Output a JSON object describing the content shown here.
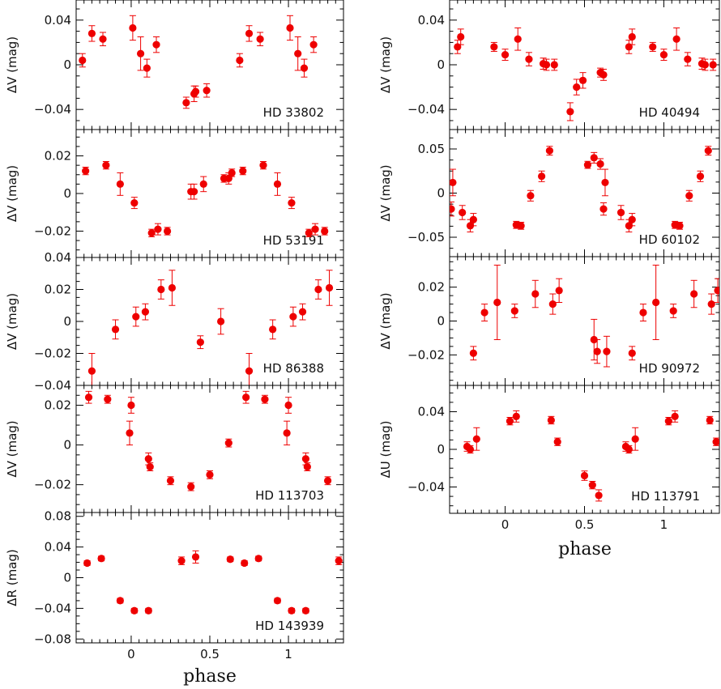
{
  "figure": {
    "xlabel": "phase",
    "x_ticks": [
      0,
      0.5,
      1
    ],
    "x_tick_labels": [
      "0",
      "0.5",
      "1"
    ],
    "xlim": [
      -0.35,
      1.35
    ]
  },
  "chart_data": [
    {
      "type": "scatter",
      "star": "HD 33802",
      "ylabel": "ΔV (mag)",
      "ylim": [
        -0.058,
        0.058
      ],
      "y_ticks": [
        0.04,
        0,
        -0.04
      ],
      "y_tick_labels": [
        "0.04",
        "0",
        "−0.04"
      ],
      "marker_color": "#ee0000",
      "points": [
        [
          -0.31,
          0.004,
          0.006
        ],
        [
          -0.25,
          0.028,
          0.007
        ],
        [
          -0.18,
          0.023,
          0.006
        ],
        [
          0.01,
          0.033,
          0.011
        ],
        [
          0.06,
          0.01,
          0.015
        ],
        [
          0.1,
          -0.003,
          0.008
        ],
        [
          0.16,
          0.018,
          0.007
        ],
        [
          0.35,
          -0.034,
          0.005
        ],
        [
          0.4,
          -0.026,
          0.007
        ],
        [
          0.41,
          -0.024,
          0.005
        ],
        [
          0.48,
          -0.023,
          0.006
        ],
        [
          0.69,
          0.004,
          0.006
        ],
        [
          0.75,
          0.028,
          0.007
        ],
        [
          0.82,
          0.023,
          0.006
        ],
        [
          1.01,
          0.033,
          0.011
        ],
        [
          1.06,
          0.01,
          0.015
        ],
        [
          1.1,
          -0.003,
          0.008
        ],
        [
          1.16,
          0.018,
          0.007
        ]
      ]
    },
    {
      "type": "scatter",
      "star": "HD 40494",
      "ylabel": "ΔV (mag)",
      "ylim": [
        -0.058,
        0.058
      ],
      "y_ticks": [
        0.04,
        0,
        -0.04
      ],
      "y_tick_labels": [
        "0.04",
        "0",
        "−0.04"
      ],
      "marker_color": "#ee0000",
      "points": [
        [
          -0.3,
          0.016,
          0.006
        ],
        [
          -0.28,
          0.025,
          0.007
        ],
        [
          -0.07,
          0.016,
          0.004
        ],
        [
          0.0,
          0.009,
          0.005
        ],
        [
          0.08,
          0.023,
          0.01
        ],
        [
          0.15,
          0.005,
          0.006
        ],
        [
          0.24,
          0.001,
          0.005
        ],
        [
          0.26,
          0.0,
          0.005
        ],
        [
          0.31,
          0.0,
          0.005
        ],
        [
          0.41,
          -0.042,
          0.008
        ],
        [
          0.45,
          -0.02,
          0.007
        ],
        [
          0.49,
          -0.014,
          0.007
        ],
        [
          0.6,
          -0.007,
          0.004
        ],
        [
          0.62,
          -0.009,
          0.005
        ],
        [
          0.78,
          0.016,
          0.006
        ],
        [
          0.8,
          0.025,
          0.007
        ],
        [
          0.93,
          0.016,
          0.004
        ],
        [
          1.0,
          0.009,
          0.005
        ],
        [
          1.08,
          0.023,
          0.01
        ],
        [
          1.15,
          0.005,
          0.006
        ],
        [
          1.24,
          0.001,
          0.005
        ],
        [
          1.26,
          0.0,
          0.005
        ],
        [
          1.31,
          0.0,
          0.005
        ]
      ]
    },
    {
      "type": "scatter",
      "star": "HD 53191",
      "ylabel": "ΔV (mag)",
      "ylim": [
        -0.034,
        0.034
      ],
      "y_ticks": [
        0.02,
        0,
        -0.02
      ],
      "y_tick_labels": [
        "0.02",
        "0",
        "−0.02"
      ],
      "marker_color": "#ee0000",
      "points": [
        [
          -0.29,
          0.012,
          0.002
        ],
        [
          -0.16,
          0.015,
          0.002
        ],
        [
          -0.07,
          0.005,
          0.006
        ],
        [
          0.02,
          -0.005,
          0.003
        ],
        [
          0.13,
          -0.021,
          0.002
        ],
        [
          0.17,
          -0.019,
          0.003
        ],
        [
          0.23,
          -0.02,
          0.002
        ],
        [
          0.38,
          0.001,
          0.004
        ],
        [
          0.4,
          0.001,
          0.004
        ],
        [
          0.46,
          0.005,
          0.004
        ],
        [
          0.59,
          0.008,
          0.002
        ],
        [
          0.62,
          0.008,
          0.003
        ],
        [
          0.64,
          0.011,
          0.002
        ],
        [
          0.71,
          0.012,
          0.002
        ],
        [
          0.84,
          0.015,
          0.002
        ],
        [
          0.93,
          0.005,
          0.006
        ],
        [
          1.02,
          -0.005,
          0.003
        ],
        [
          1.13,
          -0.021,
          0.002
        ],
        [
          1.17,
          -0.019,
          0.003
        ],
        [
          1.23,
          -0.02,
          0.002
        ]
      ]
    },
    {
      "type": "scatter",
      "star": "HD 60102",
      "ylabel": "ΔV (mag)",
      "ylim": [
        -0.072,
        0.072
      ],
      "y_ticks": [
        0.05,
        0,
        -0.05
      ],
      "y_tick_labels": [
        "0.05",
        "0",
        "−0.05"
      ],
      "marker_color": "#ee0000",
      "points": [
        [
          -0.34,
          -0.018,
          0.008
        ],
        [
          -0.33,
          0.012,
          0.015
        ],
        [
          -0.27,
          -0.022,
          0.008
        ],
        [
          -0.22,
          -0.037,
          0.007
        ],
        [
          -0.2,
          -0.03,
          0.007
        ],
        [
          0.07,
          -0.036,
          0.004
        ],
        [
          0.1,
          -0.037,
          0.004
        ],
        [
          0.16,
          -0.003,
          0.006
        ],
        [
          0.23,
          0.019,
          0.006
        ],
        [
          0.28,
          0.048,
          0.005
        ],
        [
          0.52,
          0.032,
          0.004
        ],
        [
          0.56,
          0.04,
          0.006
        ],
        [
          0.6,
          0.033,
          0.006
        ],
        [
          0.62,
          -0.018,
          0.007
        ],
        [
          0.63,
          0.012,
          0.015
        ],
        [
          0.73,
          -0.022,
          0.008
        ],
        [
          0.78,
          -0.037,
          0.007
        ],
        [
          0.8,
          -0.03,
          0.007
        ],
        [
          1.07,
          -0.036,
          0.004
        ],
        [
          1.1,
          -0.037,
          0.004
        ],
        [
          1.16,
          -0.003,
          0.006
        ],
        [
          1.23,
          0.019,
          0.006
        ],
        [
          1.28,
          0.048,
          0.005
        ]
      ]
    },
    {
      "type": "scatter",
      "star": "HD 86388",
      "ylabel": "ΔV (mag)",
      "ylim": [
        -0.04,
        0.04
      ],
      "y_ticks": [
        0.04,
        0.02,
        0,
        -0.02,
        -0.04
      ],
      "y_tick_labels": [
        "0.04",
        "0.02",
        "0",
        "−0.02",
        "−0.04"
      ],
      "marker_color": "#ee0000",
      "points": [
        [
          -0.25,
          -0.031,
          0.011
        ],
        [
          -0.1,
          -0.005,
          0.006
        ],
        [
          0.03,
          0.003,
          0.006
        ],
        [
          0.09,
          0.006,
          0.005
        ],
        [
          0.19,
          0.02,
          0.006
        ],
        [
          0.26,
          0.021,
          0.011
        ],
        [
          0.44,
          -0.013,
          0.004
        ],
        [
          0.57,
          0.0,
          0.008
        ],
        [
          0.75,
          -0.031,
          0.011
        ],
        [
          0.9,
          -0.005,
          0.006
        ],
        [
          1.03,
          0.003,
          0.006
        ],
        [
          1.09,
          0.006,
          0.005
        ],
        [
          1.19,
          0.02,
          0.006
        ],
        [
          1.26,
          0.021,
          0.011
        ]
      ]
    },
    {
      "type": "scatter",
      "star": "HD 90972",
      "ylabel": "ΔV (mag)",
      "ylim": [
        -0.038,
        0.038
      ],
      "y_ticks": [
        0.02,
        0,
        -0.02
      ],
      "y_tick_labels": [
        "0.02",
        "0",
        "−0.02"
      ],
      "marker_color": "#ee0000",
      "points": [
        [
          -0.2,
          -0.019,
          0.004
        ],
        [
          -0.13,
          0.005,
          0.005
        ],
        [
          -0.05,
          0.011,
          0.022
        ],
        [
          0.06,
          0.006,
          0.004
        ],
        [
          0.19,
          0.016,
          0.008
        ],
        [
          0.3,
          0.01,
          0.006
        ],
        [
          0.34,
          0.018,
          0.007
        ],
        [
          0.56,
          -0.011,
          0.012
        ],
        [
          0.58,
          -0.018,
          0.007
        ],
        [
          0.64,
          -0.018,
          0.009
        ],
        [
          0.8,
          -0.019,
          0.004
        ],
        [
          0.87,
          0.005,
          0.005
        ],
        [
          0.95,
          0.011,
          0.022
        ],
        [
          1.06,
          0.006,
          0.004
        ],
        [
          1.19,
          0.016,
          0.008
        ],
        [
          1.3,
          0.01,
          0.006
        ],
        [
          1.34,
          0.018,
          0.007
        ]
      ]
    },
    {
      "type": "scatter",
      "star": "HD 113703",
      "ylabel": "ΔV (mag)",
      "ylim": [
        -0.034,
        0.03
      ],
      "y_ticks": [
        0.02,
        0,
        -0.02
      ],
      "y_tick_labels": [
        "0.02",
        "0",
        "−0.02"
      ],
      "marker_color": "#ee0000",
      "points": [
        [
          -0.27,
          0.024,
          0.003
        ],
        [
          -0.15,
          0.023,
          0.002
        ],
        [
          -0.01,
          0.006,
          0.006
        ],
        [
          0.0,
          0.02,
          0.004
        ],
        [
          0.11,
          -0.007,
          0.003
        ],
        [
          0.12,
          -0.011,
          0.002
        ],
        [
          0.25,
          -0.018,
          0.002
        ],
        [
          0.38,
          -0.021,
          0.002
        ],
        [
          0.5,
          -0.015,
          0.002
        ],
        [
          0.62,
          0.001,
          0.002
        ],
        [
          0.73,
          0.024,
          0.003
        ],
        [
          0.85,
          0.023,
          0.002
        ],
        [
          0.99,
          0.006,
          0.006
        ],
        [
          1.0,
          0.02,
          0.004
        ],
        [
          1.11,
          -0.007,
          0.003
        ],
        [
          1.12,
          -0.011,
          0.002
        ],
        [
          1.25,
          -0.018,
          0.002
        ]
      ]
    },
    {
      "type": "scatter",
      "star": "HD 113791",
      "ylabel": "ΔU (mag)",
      "ylim": [
        -0.068,
        0.068
      ],
      "y_ticks": [
        0.04,
        0,
        -0.04
      ],
      "y_tick_labels": [
        "0.04",
        "0",
        "−0.04"
      ],
      "marker_color": "#ee0000",
      "points": [
        [
          -0.24,
          0.003,
          0.005
        ],
        [
          -0.22,
          0.0,
          0.004
        ],
        [
          -0.18,
          0.011,
          0.012
        ],
        [
          0.03,
          0.03,
          0.004
        ],
        [
          0.07,
          0.035,
          0.006
        ],
        [
          0.29,
          0.031,
          0.004
        ],
        [
          0.33,
          0.008,
          0.004
        ],
        [
          0.5,
          -0.028,
          0.005
        ],
        [
          0.55,
          -0.038,
          0.004
        ],
        [
          0.59,
          -0.049,
          0.006
        ],
        [
          0.76,
          0.003,
          0.005
        ],
        [
          0.78,
          0.0,
          0.004
        ],
        [
          0.82,
          0.011,
          0.012
        ],
        [
          1.03,
          0.03,
          0.004
        ],
        [
          1.07,
          0.035,
          0.006
        ],
        [
          1.29,
          0.031,
          0.004
        ],
        [
          1.33,
          0.008,
          0.004
        ]
      ]
    },
    {
      "type": "scatter",
      "star": "HD 143939",
      "ylabel": "ΔR (mag)",
      "ylim": [
        -0.085,
        0.085
      ],
      "y_ticks": [
        0.08,
        0.04,
        0,
        -0.04,
        -0.08
      ],
      "y_tick_labels": [
        "0.08",
        "0.04",
        "0",
        "−0.04",
        "−0.08"
      ],
      "marker_color": "#ee0000",
      "points": [
        [
          -0.28,
          0.019,
          0.003
        ],
        [
          -0.19,
          0.025,
          0.003
        ],
        [
          -0.07,
          -0.03,
          0.003
        ],
        [
          0.02,
          -0.043,
          0.003
        ],
        [
          0.11,
          -0.043,
          0.003
        ],
        [
          0.32,
          0.022,
          0.005
        ],
        [
          0.41,
          0.027,
          0.008
        ],
        [
          0.63,
          0.024,
          0.003
        ],
        [
          0.72,
          0.019,
          0.003
        ],
        [
          0.81,
          0.025,
          0.003
        ],
        [
          0.93,
          -0.03,
          0.003
        ],
        [
          1.02,
          -0.043,
          0.003
        ],
        [
          1.11,
          -0.043,
          0.003
        ],
        [
          1.32,
          0.022,
          0.005
        ]
      ]
    }
  ]
}
